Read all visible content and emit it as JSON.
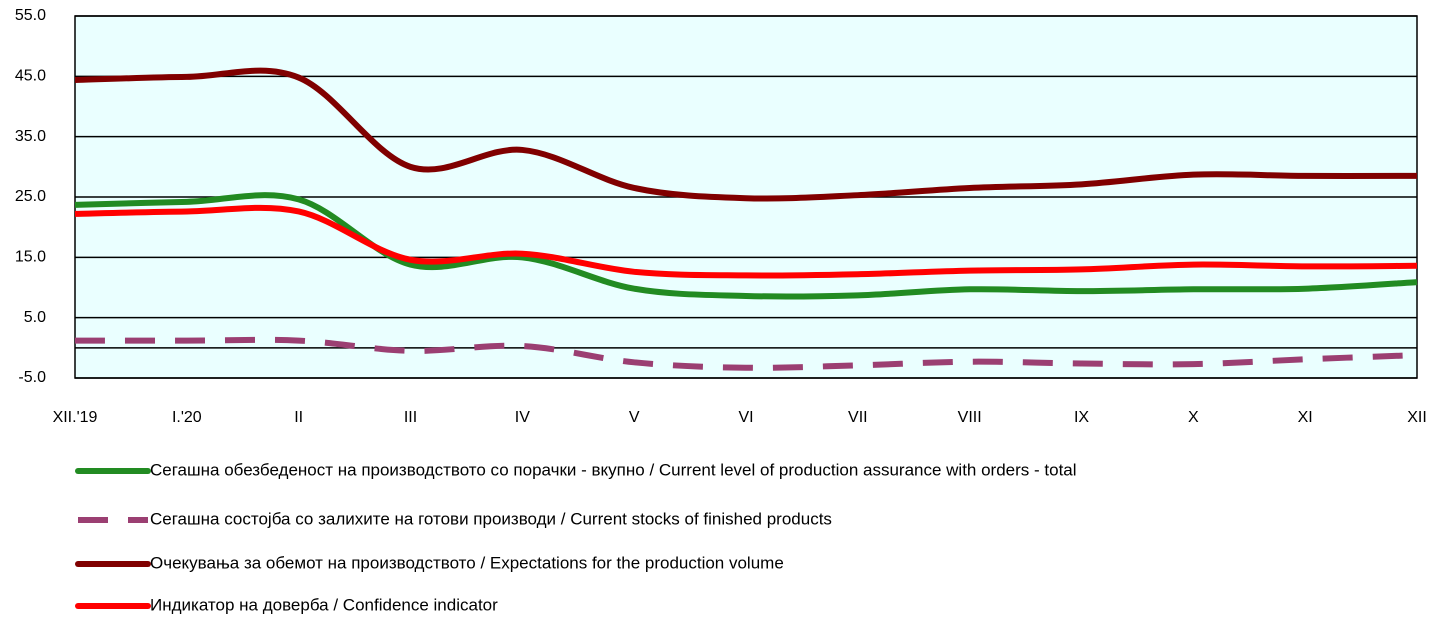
{
  "chart_data": {
    "type": "line",
    "categories": [
      "XII.'19",
      "I.'20",
      "II",
      "III",
      "IV",
      "V",
      "VI",
      "VII",
      "VIII",
      "IX",
      "X",
      "XI",
      "XII"
    ],
    "ylim": [
      -5,
      55
    ],
    "yticks": [
      {
        "value": 55,
        "label": "55.0"
      },
      {
        "value": 45,
        "label": "45.0"
      },
      {
        "value": 35,
        "label": "35.0"
      },
      {
        "value": 25,
        "label": "25.0"
      },
      {
        "value": 15,
        "label": "15.0"
      },
      {
        "value": 5,
        "label": "5.0"
      },
      {
        "value": -5,
        "label": "-5.0"
      }
    ],
    "grid": true,
    "series": [
      {
        "name": "Сегашна обезбеденост на производството со порачки - вкупно / Current  level of production assurance with orders - total",
        "color": "#228b22",
        "dash": false,
        "values": [
          23.7,
          24.2,
          24.6,
          13.8,
          15.0,
          9.8,
          8.6,
          8.7,
          9.7,
          9.4,
          9.7,
          9.8,
          10.9
        ]
      },
      {
        "name": "Сегашна состојба со залихите на готови производи / Current stocks of finished products",
        "color": "#9b3f72",
        "dash": true,
        "values": [
          1.2,
          1.2,
          1.2,
          -0.5,
          0.3,
          -2.4,
          -3.3,
          -2.9,
          -2.3,
          -2.6,
          -2.7,
          -1.9,
          -1.2
        ]
      },
      {
        "name": "Очекувања за обемот на производството / Expectations for the production volume",
        "color": "#800000",
        "dash": false,
        "values": [
          44.4,
          44.9,
          44.8,
          30.0,
          32.8,
          26.5,
          24.8,
          25.3,
          26.5,
          27.1,
          28.7,
          28.5,
          28.5
        ]
      },
      {
        "name": "Индикатор на доверба / Confidence indicator",
        "color": "#ff0000",
        "dash": false,
        "values": [
          22.2,
          22.6,
          22.6,
          14.6,
          15.6,
          12.6,
          12.0,
          12.2,
          12.8,
          13.0,
          13.8,
          13.5,
          13.6
        ]
      }
    ]
  }
}
